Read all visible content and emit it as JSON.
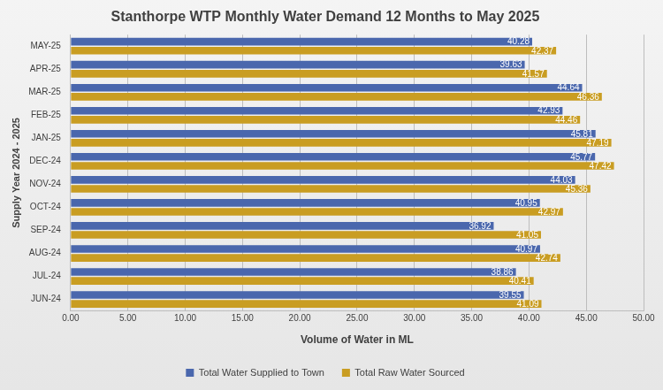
{
  "chart_data": {
    "type": "bar",
    "orientation": "horizontal",
    "title": "Stanthorpe WTP Monthly Water Demand 12 Months to May 2025",
    "x_label": "Volume of Water in ML",
    "y_label": "Supply Year 2024 - 2025",
    "categories": [
      "MAY-25",
      "APR-25",
      "MAR-25",
      "FEB-25",
      "JAN-25",
      "DEC-24",
      "NOV-24",
      "OCT-24",
      "SEP-24",
      "AUG-24",
      "JUL-24",
      "JUN-24"
    ],
    "series": [
      {
        "name": "Total Water Supplied to Town",
        "color": "#4a67ad",
        "values": [
          40.28,
          39.63,
          44.64,
          42.93,
          45.81,
          45.77,
          44.03,
          40.95,
          36.92,
          40.97,
          38.86,
          39.55
        ]
      },
      {
        "name": "Total Raw Water Sourced",
        "color": "#c99d22",
        "values": [
          42.37,
          41.57,
          46.36,
          44.46,
          47.19,
          47.42,
          45.36,
          42.97,
          41.05,
          42.74,
          40.41,
          41.09
        ]
      }
    ],
    "xlim": [
      0,
      50
    ],
    "xticks": [
      {
        "value": 0,
        "label": "0.00"
      },
      {
        "value": 5,
        "label": "5.00"
      },
      {
        "value": 10,
        "label": "10.00"
      },
      {
        "value": 15,
        "label": "15.00"
      },
      {
        "value": 20,
        "label": "20.00"
      },
      {
        "value": 25,
        "label": "25.00"
      },
      {
        "value": 30,
        "label": "30.00"
      },
      {
        "value": 35,
        "label": "35.00"
      },
      {
        "value": 40,
        "label": "40.00"
      },
      {
        "value": 45,
        "label": "45.00"
      },
      {
        "value": 50,
        "label": "50.00"
      }
    ],
    "grid": true,
    "legend": "bottom",
    "data_labels": true
  }
}
